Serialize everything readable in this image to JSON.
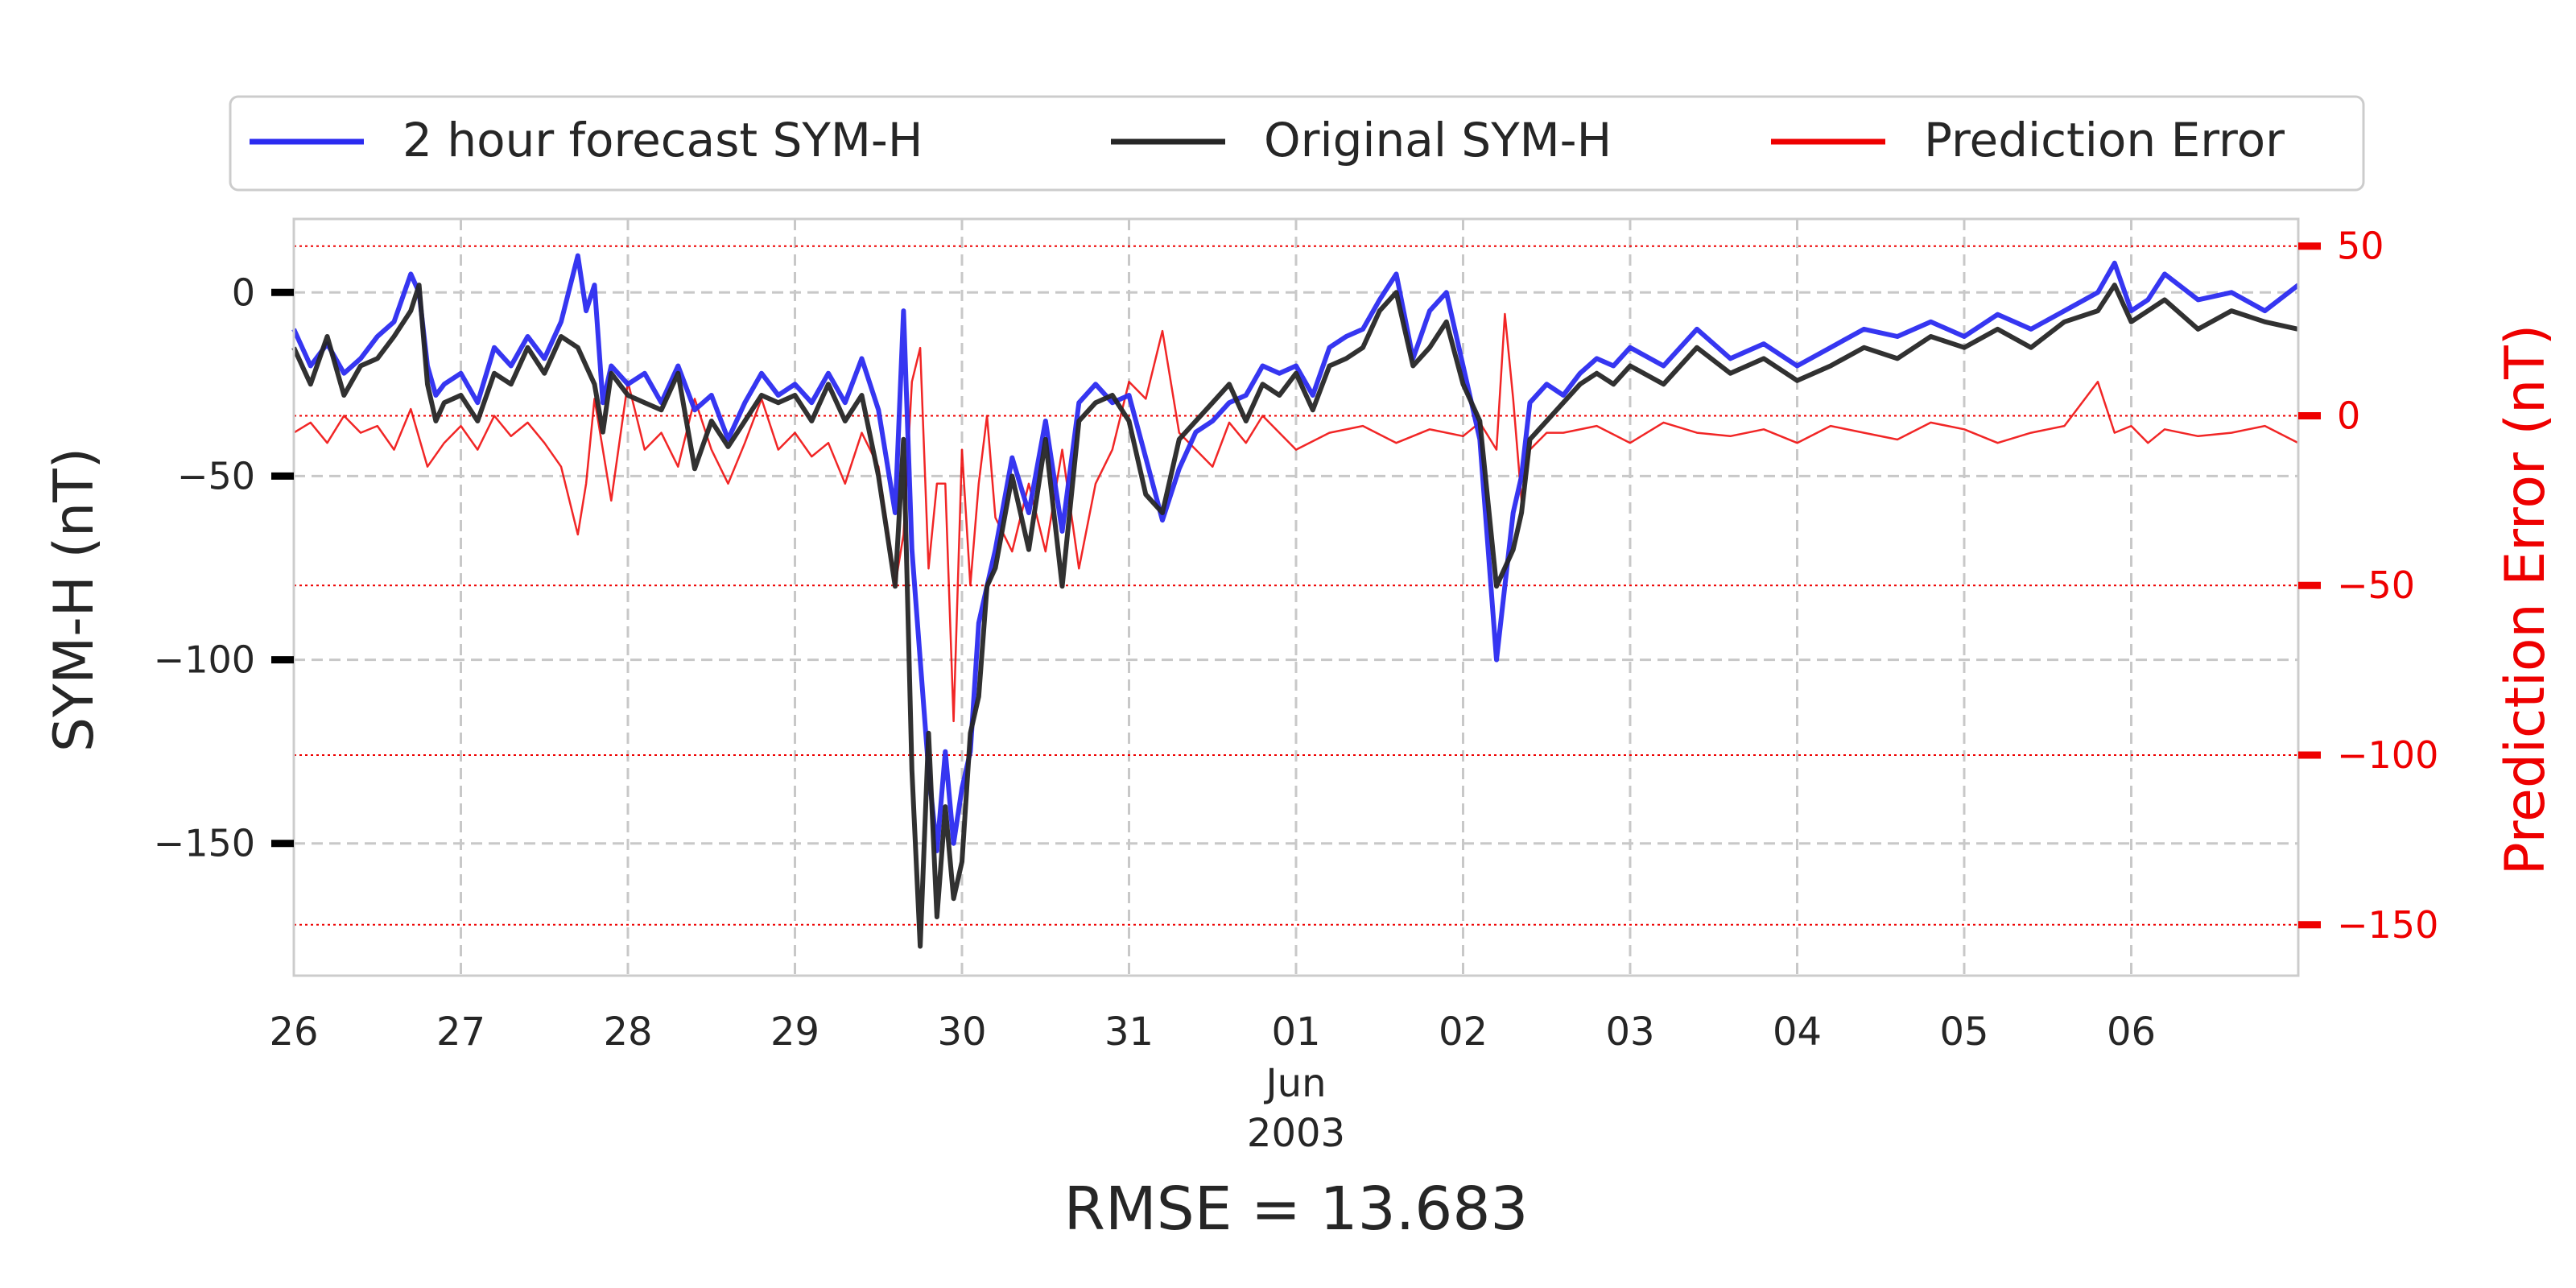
{
  "chart_data": {
    "type": "line",
    "legend": {
      "placement": "top-center",
      "entries": [
        {
          "label": "2 hour forecast SYM-H",
          "color": "#2b2bf0"
        },
        {
          "label": "Original SYM-H",
          "color": "#262626"
        },
        {
          "label": "Prediction Error",
          "color": "#ee0000"
        }
      ]
    },
    "y_left": {
      "label": "SYM-H (nT)",
      "ylim": [
        -186,
        20
      ],
      "ticks": [
        0,
        -50,
        -100,
        -150
      ],
      "tick_labels": [
        "0",
        "−50",
        "−100",
        "−150"
      ],
      "grid": true
    },
    "y_right": {
      "label": "Prediction Error (nT)",
      "ylim": [
        -165,
        58
      ],
      "ticks": [
        50,
        0,
        -50,
        -100,
        -150
      ],
      "tick_labels": [
        "50",
        "0",
        "−50",
        "−100",
        "−150"
      ],
      "color": "#ee0000",
      "grid": true
    },
    "x_axis": {
      "unit": "days",
      "xlim": [
        0,
        12
      ],
      "ticks": [
        0,
        1,
        2,
        3,
        4,
        5,
        6,
        7,
        8,
        9,
        10,
        11
      ],
      "tick_labels": [
        "26",
        "27",
        "28",
        "29",
        "30",
        "31",
        "01",
        "02",
        "03",
        "04",
        "05",
        "06"
      ],
      "month_label": "Jun",
      "year_label": "2003",
      "grid": true
    },
    "annotation": "RMSE = 13.683",
    "series": [
      {
        "name": "2 hour forecast SYM-H",
        "axis": "left",
        "color": "#2b2bf0",
        "x": [
          0,
          0.1,
          0.2,
          0.3,
          0.4,
          0.5,
          0.6,
          0.7,
          0.75,
          0.8,
          0.85,
          0.9,
          1.0,
          1.1,
          1.2,
          1.3,
          1.4,
          1.5,
          1.6,
          1.7,
          1.75,
          1.8,
          1.85,
          1.9,
          2.0,
          2.1,
          2.2,
          2.3,
          2.4,
          2.5,
          2.6,
          2.7,
          2.8,
          2.9,
          3.0,
          3.1,
          3.2,
          3.3,
          3.4,
          3.5,
          3.6,
          3.65,
          3.7,
          3.75,
          3.8,
          3.85,
          3.9,
          3.95,
          4.0,
          4.05,
          4.1,
          4.15,
          4.2,
          4.3,
          4.4,
          4.5,
          4.6,
          4.7,
          4.8,
          4.9,
          5.0,
          5.1,
          5.2,
          5.3,
          5.4,
          5.5,
          5.6,
          5.7,
          5.8,
          5.9,
          6.0,
          6.1,
          6.2,
          6.3,
          6.4,
          6.5,
          6.6,
          6.7,
          6.8,
          6.9,
          7.0,
          7.1,
          7.2,
          7.3,
          7.35,
          7.4,
          7.5,
          7.6,
          7.7,
          7.8,
          7.9,
          8.0,
          8.2,
          8.4,
          8.6,
          8.8,
          9.0,
          9.2,
          9.4,
          9.6,
          9.8,
          10.0,
          10.2,
          10.4,
          10.6,
          10.8,
          10.9,
          11.0,
          11.1,
          11.2,
          11.4,
          11.6,
          11.8,
          12.0
        ],
        "y": [
          -10,
          -20,
          -14,
          -22,
          -18,
          -12,
          -8,
          5,
          0,
          -20,
          -28,
          -25,
          -22,
          -30,
          -15,
          -20,
          -12,
          -18,
          -8,
          10,
          -5,
          2,
          -30,
          -20,
          -25,
          -22,
          -30,
          -20,
          -32,
          -28,
          -40,
          -30,
          -22,
          -28,
          -25,
          -30,
          -22,
          -30,
          -18,
          -32,
          -60,
          -5,
          -70,
          -100,
          -130,
          -152,
          -125,
          -150,
          -135,
          -125,
          -90,
          -80,
          -70,
          -45,
          -60,
          -35,
          -65,
          -30,
          -25,
          -30,
          -28,
          -45,
          -62,
          -48,
          -38,
          -35,
          -30,
          -28,
          -20,
          -22,
          -20,
          -28,
          -15,
          -12,
          -10,
          -2,
          5,
          -18,
          -5,
          0,
          -20,
          -40,
          -100,
          -60,
          -50,
          -30,
          -25,
          -28,
          -22,
          -18,
          -20,
          -15,
          -20,
          -10,
          -18,
          -14,
          -20,
          -15,
          -10,
          -12,
          -8,
          -12,
          -6,
          -10,
          -5,
          0,
          8,
          -5,
          -2,
          5,
          -2,
          0,
          -5,
          2
        ]
      },
      {
        "name": "Original SYM-H",
        "axis": "left",
        "color": "#262626",
        "x": [
          0,
          0.1,
          0.2,
          0.3,
          0.4,
          0.5,
          0.6,
          0.7,
          0.75,
          0.8,
          0.85,
          0.9,
          1.0,
          1.1,
          1.2,
          1.3,
          1.4,
          1.5,
          1.6,
          1.7,
          1.75,
          1.8,
          1.85,
          1.9,
          2.0,
          2.1,
          2.2,
          2.3,
          2.4,
          2.5,
          2.6,
          2.7,
          2.8,
          2.9,
          3.0,
          3.1,
          3.2,
          3.3,
          3.4,
          3.5,
          3.6,
          3.65,
          3.7,
          3.75,
          3.8,
          3.85,
          3.9,
          3.95,
          4.0,
          4.05,
          4.1,
          4.15,
          4.2,
          4.3,
          4.4,
          4.5,
          4.6,
          4.7,
          4.8,
          4.9,
          5.0,
          5.1,
          5.2,
          5.3,
          5.4,
          5.5,
          5.6,
          5.7,
          5.8,
          5.9,
          6.0,
          6.1,
          6.2,
          6.3,
          6.4,
          6.5,
          6.6,
          6.7,
          6.8,
          6.9,
          7.0,
          7.1,
          7.2,
          7.3,
          7.35,
          7.4,
          7.5,
          7.6,
          7.7,
          7.8,
          7.9,
          8.0,
          8.2,
          8.4,
          8.6,
          8.8,
          9.0,
          9.2,
          9.4,
          9.6,
          9.8,
          10.0,
          10.2,
          10.4,
          10.6,
          10.8,
          10.9,
          11.0,
          11.1,
          11.2,
          11.4,
          11.6,
          11.8,
          12.0
        ],
        "y": [
          -15,
          -25,
          -12,
          -28,
          -20,
          -18,
          -12,
          -5,
          2,
          -25,
          -35,
          -30,
          -28,
          -35,
          -22,
          -25,
          -15,
          -22,
          -12,
          -15,
          -20,
          -25,
          -38,
          -22,
          -28,
          -30,
          -32,
          -22,
          -48,
          -35,
          -42,
          -35,
          -28,
          -30,
          -28,
          -35,
          -25,
          -35,
          -28,
          -50,
          -80,
          -40,
          -130,
          -178,
          -120,
          -170,
          -140,
          -165,
          -155,
          -120,
          -110,
          -80,
          -75,
          -50,
          -70,
          -40,
          -80,
          -35,
          -30,
          -28,
          -35,
          -55,
          -60,
          -40,
          -35,
          -30,
          -25,
          -35,
          -25,
          -28,
          -22,
          -32,
          -20,
          -18,
          -15,
          -5,
          0,
          -20,
          -15,
          -8,
          -25,
          -35,
          -80,
          -70,
          -60,
          -40,
          -35,
          -30,
          -25,
          -22,
          -25,
          -20,
          -25,
          -15,
          -22,
          -18,
          -24,
          -20,
          -15,
          -18,
          -12,
          -15,
          -10,
          -15,
          -8,
          -5,
          2,
          -8,
          -5,
          -2,
          -10,
          -5,
          -8,
          -10
        ]
      },
      {
        "name": "Prediction Error",
        "axis": "right",
        "color": "#ee0000",
        "x": [
          0,
          0.1,
          0.2,
          0.3,
          0.4,
          0.5,
          0.6,
          0.7,
          0.8,
          0.9,
          1.0,
          1.1,
          1.2,
          1.3,
          1.4,
          1.5,
          1.6,
          1.7,
          1.75,
          1.8,
          1.9,
          2.0,
          2.1,
          2.2,
          2.3,
          2.4,
          2.5,
          2.6,
          2.7,
          2.8,
          2.9,
          3.0,
          3.1,
          3.2,
          3.3,
          3.4,
          3.5,
          3.6,
          3.65,
          3.7,
          3.75,
          3.8,
          3.85,
          3.9,
          3.95,
          4.0,
          4.05,
          4.1,
          4.15,
          4.2,
          4.3,
          4.4,
          4.5,
          4.6,
          4.7,
          4.8,
          4.9,
          5.0,
          5.1,
          5.2,
          5.3,
          5.4,
          5.5,
          5.6,
          5.7,
          5.8,
          5.9,
          6.0,
          6.2,
          6.4,
          6.6,
          6.8,
          7.0,
          7.1,
          7.2,
          7.25,
          7.3,
          7.35,
          7.4,
          7.5,
          7.6,
          7.8,
          8.0,
          8.2,
          8.4,
          8.6,
          8.8,
          9.0,
          9.2,
          9.4,
          9.6,
          9.8,
          10.0,
          10.2,
          10.4,
          10.6,
          10.8,
          10.9,
          11.0,
          11.1,
          11.2,
          11.4,
          11.6,
          11.8,
          12.0
        ],
        "y": [
          -5,
          -2,
          -8,
          0,
          -5,
          -3,
          -10,
          2,
          -15,
          -8,
          -3,
          -10,
          0,
          -6,
          -2,
          -8,
          -15,
          -35,
          -20,
          5,
          -25,
          10,
          -10,
          -5,
          -15,
          5,
          -10,
          -20,
          -8,
          5,
          -10,
          -5,
          -12,
          -8,
          -20,
          -5,
          -15,
          -50,
          -35,
          10,
          20,
          -45,
          -20,
          -20,
          -90,
          -10,
          -50,
          -20,
          0,
          -30,
          -40,
          -20,
          -40,
          -10,
          -45,
          -20,
          -10,
          10,
          5,
          25,
          -5,
          -10,
          -15,
          -2,
          -8,
          0,
          -5,
          -10,
          -5,
          -3,
          -8,
          -4,
          -6,
          -2,
          -10,
          30,
          5,
          -25,
          -10,
          -5,
          -5,
          -3,
          -8,
          -2,
          -5,
          -6,
          -4,
          -8,
          -3,
          -5,
          -7,
          -2,
          -4,
          -8,
          -5,
          -3,
          10,
          -5,
          -3,
          -8,
          -4,
          -6,
          -5,
          -3,
          -8
        ]
      }
    ]
  }
}
